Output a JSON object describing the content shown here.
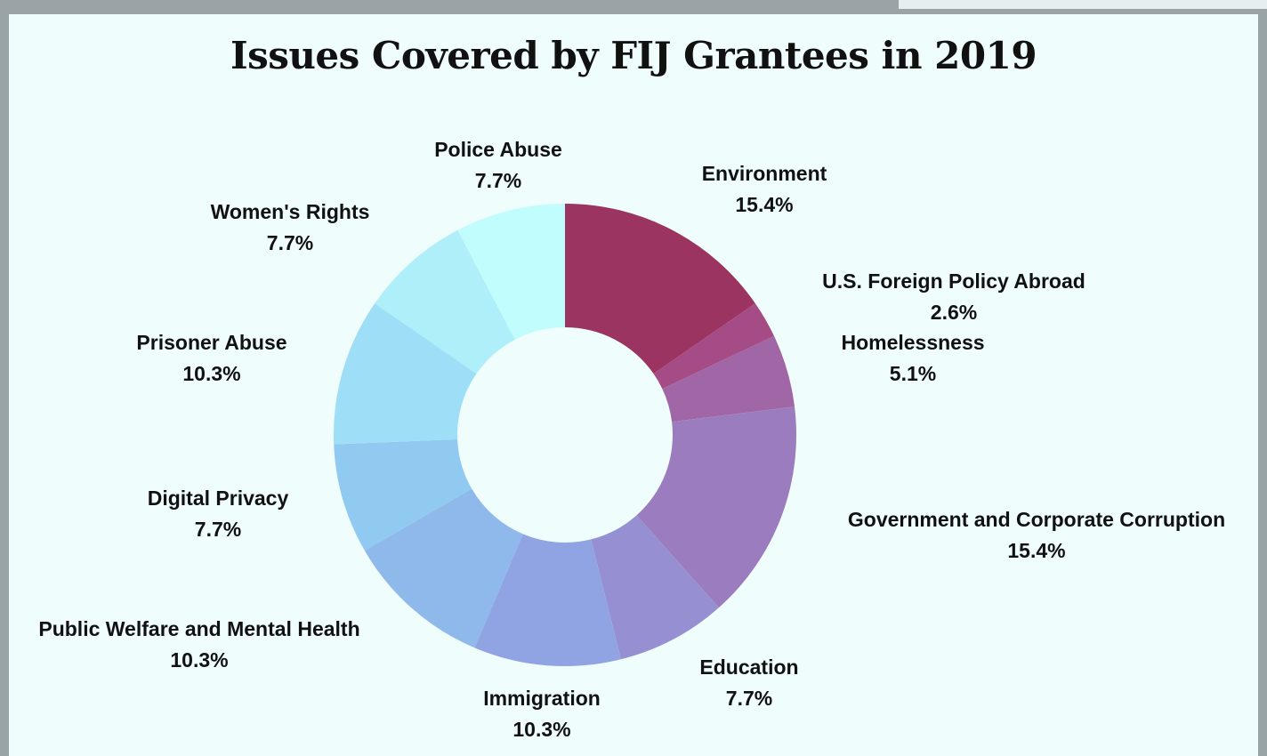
{
  "chart_data": {
    "type": "pie",
    "title": "Issues Covered by FIJ Grantees in 2019",
    "slices": [
      {
        "label": "Environment",
        "value": 15.4,
        "value_label": "15.4%",
        "color": "#9c3462"
      },
      {
        "label": "U.S. Foreign Policy Abroad",
        "value": 2.6,
        "value_label": "2.6%",
        "color": "#a54b85"
      },
      {
        "label": "Homelessness",
        "value": 5.1,
        "value_label": "5.1%",
        "color": "#a066a5"
      },
      {
        "label": "Government and Corporate Corruption",
        "value": 15.4,
        "value_label": "15.4%",
        "color": "#9b7cbf"
      },
      {
        "label": "Education",
        "value": 7.7,
        "value_label": "7.7%",
        "color": "#9690d3"
      },
      {
        "label": "Immigration",
        "value": 10.3,
        "value_label": "10.3%",
        "color": "#90a4e3"
      },
      {
        "label": "Public Welfare and Mental Health",
        "value": 10.3,
        "value_label": "10.3%",
        "color": "#8fb8eb"
      },
      {
        "label": "Digital Privacy",
        "value": 7.7,
        "value_label": "7.7%",
        "color": "#91caf1"
      },
      {
        "label": "Prisoner Abuse",
        "value": 10.3,
        "value_label": "10.3%",
        "color": "#9edef6"
      },
      {
        "label": "Women's Rights",
        "value": 7.7,
        "value_label": "7.7%",
        "color": "#aeeffa"
      },
      {
        "label": "Police Abuse",
        "value": 7.7,
        "value_label": "7.7%",
        "color": "#c1fdfd"
      }
    ]
  }
}
